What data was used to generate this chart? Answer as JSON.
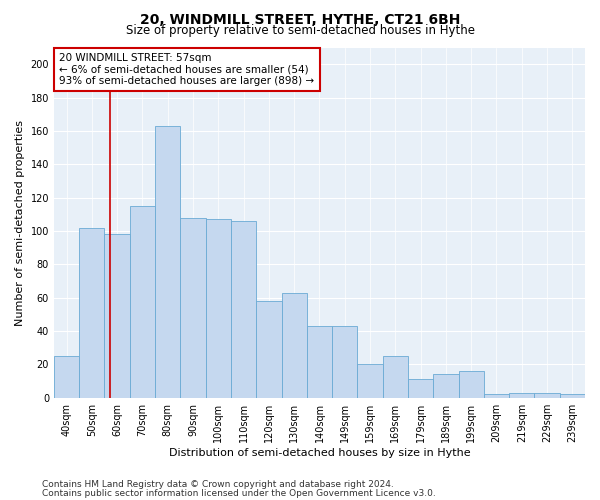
{
  "title": "20, WINDMILL STREET, HYTHE, CT21 6BH",
  "subtitle": "Size of property relative to semi-detached houses in Hythe",
  "xlabel": "Distribution of semi-detached houses by size in Hythe",
  "ylabel": "Number of semi-detached properties",
  "categories": [
    "40sqm",
    "50sqm",
    "60sqm",
    "70sqm",
    "80sqm",
    "90sqm",
    "100sqm",
    "110sqm",
    "120sqm",
    "130sqm",
    "140sqm",
    "149sqm",
    "159sqm",
    "169sqm",
    "179sqm",
    "189sqm",
    "199sqm",
    "209sqm",
    "219sqm",
    "229sqm",
    "239sqm"
  ],
  "values": [
    25,
    102,
    98,
    115,
    163,
    108,
    107,
    106,
    58,
    63,
    43,
    43,
    20,
    25,
    11,
    14,
    16,
    2,
    3,
    3,
    2
  ],
  "bar_color": "#c5d8ef",
  "bar_edge_color": "#6aaad4",
  "marker_color": "#cc0000",
  "annotation_line1": "20 WINDMILL STREET: 57sqm",
  "annotation_line2": "← 6% of semi-detached houses are smaller (54)",
  "annotation_line3": "93% of semi-detached houses are larger (898) →",
  "annotation_box_color": "#ffffff",
  "annotation_box_edge_color": "#cc0000",
  "ylim": [
    0,
    210
  ],
  "yticks": [
    0,
    20,
    40,
    60,
    80,
    100,
    120,
    140,
    160,
    180,
    200
  ],
  "footnote1": "Contains HM Land Registry data © Crown copyright and database right 2024.",
  "footnote2": "Contains public sector information licensed under the Open Government Licence v3.0.",
  "fig_bg_color": "#ffffff",
  "plot_bg_color": "#e8f0f8",
  "grid_color": "#ffffff",
  "title_fontsize": 10,
  "subtitle_fontsize": 8.5,
  "axis_label_fontsize": 8,
  "tick_fontsize": 7,
  "annotation_fontsize": 7.5,
  "footnote_fontsize": 6.5
}
